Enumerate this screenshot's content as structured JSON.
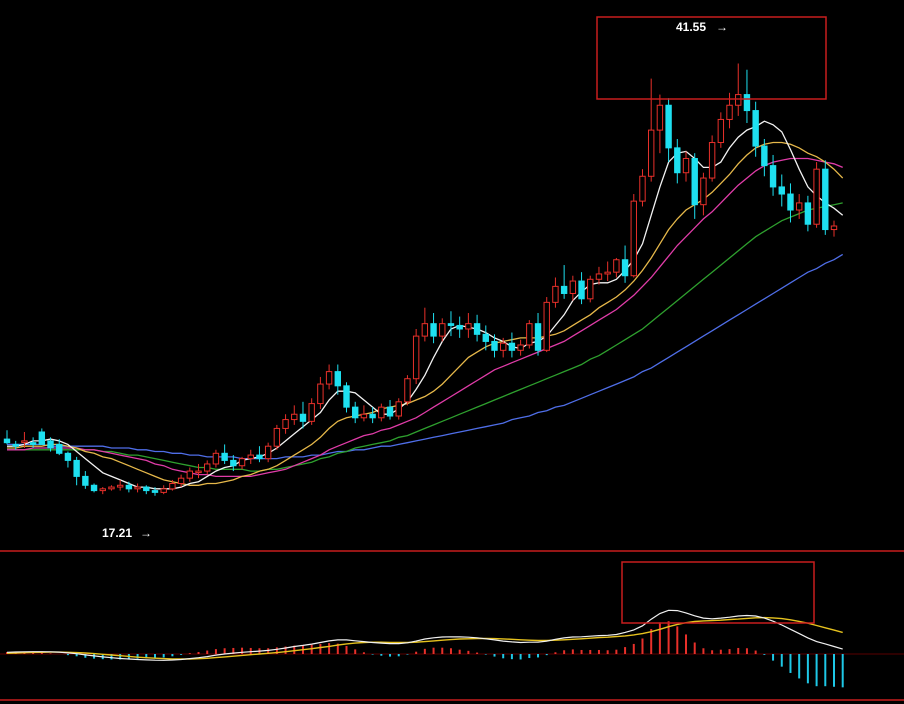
{
  "chart_data": {
    "type": "candlestick",
    "annotations": {
      "high_label": "41.55",
      "low_label": "17.21"
    },
    "price_axis": {
      "min": 15,
      "max": 44
    },
    "colors": {
      "up": "#e8302a",
      "down": "#1ee0f0",
      "ma1": "#f2f2f2",
      "ma2": "#e6b84a",
      "ma3": "#e03ca8",
      "ma4": "#2ea02e",
      "ma5": "#4f6ee8",
      "macd_dif": "#f0f0f0",
      "macd_dea": "#e6c21e",
      "hist_pos": "#e8302a",
      "hist_neg": "#1ec8e6",
      "frame": "#c81e1e"
    },
    "candles": [
      [
        20.4,
        20.9,
        20.2,
        20.1
      ],
      [
        20.1,
        20.3,
        20.0,
        19.8
      ],
      [
        20.3,
        20.8,
        20.3,
        19.9
      ],
      [
        20.2,
        20.5,
        20.1,
        19.9
      ],
      [
        20.8,
        21.0,
        20.1,
        20.1
      ],
      [
        20.3,
        20.5,
        19.9,
        19.7
      ],
      [
        20.1,
        20.4,
        19.6,
        19.5
      ],
      [
        19.6,
        19.7,
        19.2,
        18.8
      ],
      [
        19.2,
        19.4,
        18.3,
        17.8
      ],
      [
        18.3,
        18.6,
        17.8,
        17.6
      ],
      [
        17.8,
        17.9,
        17.5,
        17.4
      ],
      [
        17.5,
        17.7,
        17.6,
        17.3
      ],
      [
        17.6,
        17.8,
        17.7,
        17.5
      ],
      [
        17.7,
        18.1,
        17.8,
        17.5
      ],
      [
        17.8,
        18.0,
        17.6,
        17.4
      ],
      [
        17.6,
        17.9,
        17.7,
        17.4
      ],
      [
        17.7,
        17.8,
        17.5,
        17.3
      ],
      [
        17.5,
        17.7,
        17.4,
        17.21
      ],
      [
        17.4,
        17.8,
        17.6,
        17.3
      ],
      [
        17.6,
        18.1,
        17.9,
        17.5
      ],
      [
        17.9,
        18.4,
        18.2,
        17.7
      ],
      [
        18.2,
        18.8,
        18.6,
        18.0
      ],
      [
        18.6,
        19.0,
        18.6,
        18.2
      ],
      [
        18.6,
        19.2,
        19.0,
        18.4
      ],
      [
        19.0,
        19.8,
        19.6,
        18.8
      ],
      [
        19.6,
        20.1,
        19.2,
        19.0
      ],
      [
        19.2,
        19.5,
        18.9,
        18.6
      ],
      [
        18.9,
        19.4,
        19.3,
        18.7
      ],
      [
        19.3,
        19.8,
        19.5,
        19.0
      ],
      [
        19.5,
        20.0,
        19.3,
        19.1
      ],
      [
        19.3,
        20.2,
        20.0,
        19.1
      ],
      [
        20.0,
        21.2,
        21.0,
        19.8
      ],
      [
        21.0,
        21.8,
        21.5,
        20.7
      ],
      [
        21.5,
        22.3,
        21.8,
        21.2
      ],
      [
        21.8,
        22.5,
        21.4,
        21.0
      ],
      [
        21.4,
        22.7,
        22.4,
        21.2
      ],
      [
        22.4,
        23.9,
        23.5,
        22.1
      ],
      [
        23.5,
        24.6,
        24.2,
        23.2
      ],
      [
        24.2,
        24.6,
        23.4,
        22.9
      ],
      [
        23.4,
        23.6,
        22.2,
        21.9
      ],
      [
        22.2,
        22.5,
        21.6,
        21.3
      ],
      [
        21.6,
        22.3,
        21.8,
        21.4
      ],
      [
        21.8,
        22.2,
        21.6,
        21.3
      ],
      [
        21.6,
        22.4,
        22.2,
        21.4
      ],
      [
        22.2,
        22.6,
        21.7,
        21.5
      ],
      [
        21.7,
        22.7,
        22.5,
        21.5
      ],
      [
        22.5,
        24.0,
        23.8,
        22.3
      ],
      [
        23.8,
        26.6,
        26.2,
        23.5
      ],
      [
        26.2,
        27.8,
        26.9,
        25.9
      ],
      [
        26.9,
        27.5,
        26.2,
        25.8
      ],
      [
        26.2,
        27.2,
        26.9,
        25.9
      ],
      [
        26.9,
        27.6,
        26.8,
        26.2
      ],
      [
        26.8,
        27.3,
        26.6,
        26.1
      ],
      [
        26.6,
        27.5,
        26.9,
        26.1
      ],
      [
        26.9,
        27.4,
        26.3,
        25.9
      ],
      [
        26.3,
        26.8,
        25.9,
        25.4
      ],
      [
        25.9,
        26.3,
        25.4,
        25.0
      ],
      [
        25.4,
        26.1,
        25.8,
        25.0
      ],
      [
        25.8,
        26.4,
        25.4,
        25.0
      ],
      [
        25.4,
        26.0,
        25.7,
        25.1
      ],
      [
        25.7,
        27.1,
        26.9,
        25.5
      ],
      [
        26.9,
        27.5,
        25.4,
        25.1
      ],
      [
        25.4,
        28.4,
        28.1,
        25.3
      ],
      [
        28.1,
        29.5,
        29.0,
        27.8
      ],
      [
        29.0,
        30.2,
        28.6,
        28.3
      ],
      [
        28.6,
        29.6,
        29.3,
        28.2
      ],
      [
        29.3,
        29.8,
        28.3,
        28.0
      ],
      [
        28.3,
        29.6,
        29.4,
        28.1
      ],
      [
        29.4,
        30.1,
        29.7,
        29.1
      ],
      [
        29.7,
        30.4,
        29.8,
        29.3
      ],
      [
        29.8,
        30.6,
        30.5,
        29.5
      ],
      [
        30.5,
        31.3,
        29.6,
        29.2
      ],
      [
        29.6,
        34.2,
        33.8,
        29.5
      ],
      [
        33.8,
        35.6,
        35.2,
        33.5
      ],
      [
        35.2,
        40.7,
        37.8,
        34.9
      ],
      [
        37.8,
        39.8,
        39.2,
        36.5
      ],
      [
        39.2,
        39.6,
        36.8,
        36.0
      ],
      [
        36.8,
        37.3,
        35.4,
        34.8
      ],
      [
        35.4,
        36.6,
        36.2,
        34.9
      ],
      [
        36.2,
        36.5,
        33.6,
        32.8
      ],
      [
        33.6,
        35.4,
        35.1,
        33.0
      ],
      [
        35.1,
        37.5,
        37.1,
        34.9
      ],
      [
        37.1,
        38.8,
        38.4,
        36.8
      ],
      [
        38.4,
        39.9,
        39.2,
        37.9
      ],
      [
        39.2,
        41.55,
        39.8,
        38.6
      ],
      [
        39.8,
        41.2,
        38.9,
        38.2
      ],
      [
        38.9,
        39.4,
        36.9,
        36.3
      ],
      [
        36.9,
        37.3,
        35.8,
        35.2
      ],
      [
        35.8,
        36.4,
        34.6,
        34.1
      ],
      [
        34.6,
        35.3,
        34.2,
        33.5
      ],
      [
        34.2,
        34.8,
        33.3,
        32.6
      ],
      [
        33.3,
        34.2,
        33.7,
        32.8
      ],
      [
        33.7,
        34.1,
        32.5,
        32.1
      ],
      [
        32.5,
        36.0,
        35.6,
        32.3
      ],
      [
        35.6,
        36.1,
        32.2,
        31.9
      ],
      [
        32.2,
        32.7,
        32.4,
        31.8
      ]
    ],
    "ma_lines": [
      {
        "name": "",
        "values": [
          20.0,
          20.0,
          20.1,
          20.3,
          20.3,
          20.4,
          20.3,
          20.1,
          19.7,
          19.3,
          18.9,
          18.5,
          18.3,
          18.1,
          17.9,
          17.7,
          17.7,
          17.6,
          17.6,
          17.6,
          17.7,
          17.9,
          18.0,
          18.3,
          18.6,
          18.8,
          18.9,
          19.2,
          19.3,
          19.4,
          19.6,
          19.9,
          20.3,
          20.7,
          21.1,
          21.5,
          21.9,
          22.6,
          23.1,
          23.1,
          23.0,
          22.6,
          22.2,
          21.8,
          21.8,
          22.1,
          22.5,
          23.2,
          24.0,
          25.0,
          25.9,
          26.6,
          26.8,
          26.7,
          26.6,
          26.4,
          26.1,
          25.9,
          25.6,
          25.5,
          25.8,
          25.9,
          26.2,
          26.8,
          27.4,
          28.2,
          28.7,
          29.1,
          29.2,
          29.2,
          29.4,
          29.9,
          30.5,
          31.4,
          33.0,
          34.6,
          36.0,
          36.5,
          36.6,
          36.2,
          35.7,
          35.7,
          36.0,
          36.8,
          37.4,
          37.8,
          38.0,
          38.3,
          38.1,
          37.7,
          36.7,
          35.6,
          34.6,
          34.1,
          33.7,
          33.4,
          33.0
        ]
      },
      {
        "name": "",
        "values": [
          19.9,
          19.9,
          20.0,
          20.0,
          20.0,
          20.1,
          20.1,
          20.0,
          19.9,
          19.7,
          19.6,
          19.4,
          19.3,
          19.1,
          18.9,
          18.7,
          18.5,
          18.3,
          18.1,
          18.0,
          17.9,
          17.8,
          17.8,
          17.9,
          17.9,
          18.0,
          18.1,
          18.3,
          18.4,
          18.6,
          18.7,
          18.9,
          19.2,
          19.5,
          19.8,
          20.1,
          20.5,
          21.0,
          21.4,
          21.6,
          21.7,
          21.8,
          21.9,
          22.1,
          22.2,
          22.3,
          22.4,
          22.6,
          22.8,
          23.1,
          23.5,
          24.0,
          24.5,
          25.0,
          25.3,
          25.6,
          25.8,
          25.9,
          26.0,
          26.1,
          26.1,
          26.1,
          26.2,
          26.3,
          26.5,
          26.8,
          27.1,
          27.4,
          27.8,
          28.1,
          28.4,
          28.8,
          29.3,
          29.9,
          30.6,
          31.4,
          32.2,
          32.8,
          33.3,
          33.6,
          33.9,
          34.3,
          34.8,
          35.3,
          35.9,
          36.4,
          36.8,
          37.0,
          37.1,
          37.1,
          37.0,
          36.8,
          36.5,
          36.3,
          36.0,
          35.6,
          35.1
        ]
      },
      {
        "name": "",
        "values": [
          19.8,
          19.8,
          19.8,
          19.9,
          19.9,
          19.9,
          19.9,
          19.9,
          19.9,
          19.8,
          19.8,
          19.7,
          19.6,
          19.5,
          19.4,
          19.3,
          19.2,
          19.0,
          18.9,
          18.7,
          18.6,
          18.5,
          18.4,
          18.4,
          18.3,
          18.3,
          18.3,
          18.3,
          18.3,
          18.4,
          18.5,
          18.6,
          18.7,
          18.9,
          19.1,
          19.3,
          19.5,
          19.8,
          20.0,
          20.2,
          20.4,
          20.6,
          20.7,
          20.9,
          21.0,
          21.2,
          21.4,
          21.6,
          21.9,
          22.2,
          22.5,
          22.8,
          23.1,
          23.4,
          23.7,
          24.0,
          24.3,
          24.5,
          24.7,
          24.9,
          25.1,
          25.3,
          25.5,
          25.7,
          25.9,
          26.2,
          26.5,
          26.8,
          27.1,
          27.4,
          27.7,
          28.1,
          28.5,
          29.0,
          29.5,
          30.1,
          30.7,
          31.3,
          31.8,
          32.3,
          32.8,
          33.2,
          33.7,
          34.2,
          34.7,
          35.1,
          35.5,
          35.8,
          36.0,
          36.1,
          36.2,
          36.2,
          36.2,
          36.1,
          36.0,
          35.9,
          35.7
        ]
      },
      {
        "name": "",
        "values": [
          19.8,
          19.8,
          19.8,
          19.8,
          19.8,
          19.8,
          19.8,
          19.8,
          19.8,
          19.8,
          19.8,
          19.7,
          19.7,
          19.6,
          19.5,
          19.5,
          19.4,
          19.3,
          19.2,
          19.1,
          19.0,
          18.9,
          18.8,
          18.8,
          18.7,
          18.7,
          18.7,
          18.7,
          18.6,
          18.6,
          18.7,
          18.7,
          18.8,
          18.9,
          19.0,
          19.1,
          19.3,
          19.4,
          19.6,
          19.7,
          19.9,
          20.0,
          20.1,
          20.2,
          20.3,
          20.5,
          20.6,
          20.8,
          21.0,
          21.2,
          21.4,
          21.6,
          21.8,
          22.0,
          22.2,
          22.4,
          22.6,
          22.8,
          23.0,
          23.2,
          23.4,
          23.6,
          23.8,
          24.0,
          24.2,
          24.4,
          24.6,
          24.9,
          25.1,
          25.4,
          25.7,
          26.0,
          26.3,
          26.6,
          27.0,
          27.4,
          27.8,
          28.2,
          28.6,
          29.0,
          29.4,
          29.8,
          30.2,
          30.6,
          31.0,
          31.4,
          31.8,
          32.1,
          32.4,
          32.7,
          32.9,
          33.1,
          33.3,
          33.4,
          33.5,
          33.6,
          33.7
        ]
      },
      {
        "name": "",
        "values": [
          20.1,
          20.1,
          20.1,
          20.1,
          20.1,
          20.0,
          20.0,
          20.0,
          20.0,
          20.0,
          20.0,
          20.0,
          19.9,
          19.9,
          19.9,
          19.8,
          19.8,
          19.7,
          19.7,
          19.6,
          19.6,
          19.5,
          19.5,
          19.4,
          19.4,
          19.4,
          19.4,
          19.3,
          19.3,
          19.3,
          19.3,
          19.3,
          19.4,
          19.4,
          19.4,
          19.5,
          19.5,
          19.6,
          19.7,
          19.7,
          19.8,
          19.8,
          19.9,
          20.0,
          20.0,
          20.1,
          20.2,
          20.3,
          20.4,
          20.5,
          20.6,
          20.7,
          20.8,
          20.9,
          21.0,
          21.1,
          21.2,
          21.3,
          21.5,
          21.6,
          21.7,
          21.9,
          22.0,
          22.2,
          22.3,
          22.5,
          22.7,
          22.9,
          23.1,
          23.3,
          23.5,
          23.7,
          23.9,
          24.2,
          24.4,
          24.7,
          25.0,
          25.3,
          25.6,
          25.9,
          26.2,
          26.5,
          26.8,
          27.1,
          27.4,
          27.7,
          28.0,
          28.3,
          28.6,
          28.9,
          29.2,
          29.5,
          29.8,
          30.0,
          30.3,
          30.5,
          30.8
        ]
      }
    ],
    "macd": {
      "range": [
        -3.2,
        3.2
      ],
      "dif": [
        0.12,
        0.14,
        0.15,
        0.16,
        0.16,
        0.15,
        0.13,
        0.08,
        0.02,
        -0.06,
        -0.13,
        -0.2,
        -0.26,
        -0.31,
        -0.35,
        -0.38,
        -0.41,
        -0.43,
        -0.44,
        -0.42,
        -0.38,
        -0.32,
        -0.26,
        -0.18,
        -0.08,
        0.0,
        0.06,
        0.12,
        0.16,
        0.2,
        0.25,
        0.33,
        0.42,
        0.52,
        0.6,
        0.69,
        0.8,
        0.91,
        0.98,
        0.98,
        0.92,
        0.86,
        0.8,
        0.76,
        0.72,
        0.72,
        0.78,
        0.9,
        1.04,
        1.13,
        1.18,
        1.2,
        1.19,
        1.17,
        1.13,
        1.06,
        0.98,
        0.9,
        0.84,
        0.8,
        0.82,
        0.82,
        0.9,
        1.02,
        1.12,
        1.18,
        1.2,
        1.24,
        1.28,
        1.3,
        1.36,
        1.5,
        1.68,
        1.96,
        2.42,
        2.82,
        3.04,
        3.02,
        2.86,
        2.66,
        2.5,
        2.45,
        2.5,
        2.56,
        2.64,
        2.68,
        2.64,
        2.5,
        2.28,
        2.02,
        1.72,
        1.42,
        1.12,
        0.86,
        0.7,
        0.52,
        0.34
      ],
      "dea": [
        0.05,
        0.07,
        0.09,
        0.11,
        0.12,
        0.13,
        0.13,
        0.12,
        0.1,
        0.07,
        0.03,
        -0.02,
        -0.07,
        -0.12,
        -0.17,
        -0.22,
        -0.26,
        -0.29,
        -0.32,
        -0.34,
        -0.35,
        -0.35,
        -0.33,
        -0.3,
        -0.25,
        -0.2,
        -0.15,
        -0.1,
        -0.05,
        0.0,
        0.05,
        0.1,
        0.16,
        0.23,
        0.3,
        0.37,
        0.45,
        0.53,
        0.62,
        0.7,
        0.76,
        0.8,
        0.82,
        0.82,
        0.81,
        0.8,
        0.8,
        0.82,
        0.86,
        0.91,
        0.96,
        1.0,
        1.04,
        1.06,
        1.08,
        1.08,
        1.07,
        1.05,
        1.02,
        0.99,
        0.96,
        0.94,
        0.94,
        0.96,
        0.99,
        1.02,
        1.06,
        1.1,
        1.14,
        1.17,
        1.21,
        1.26,
        1.33,
        1.42,
        1.55,
        1.72,
        1.9,
        2.06,
        2.18,
        2.26,
        2.3,
        2.32,
        2.35,
        2.39,
        2.43,
        2.48,
        2.52,
        2.53,
        2.51,
        2.46,
        2.38,
        2.27,
        2.14,
        1.98,
        1.82,
        1.66,
        1.5
      ],
      "hist": [
        0.14,
        0.14,
        0.12,
        0.1,
        0.08,
        0.04,
        0.0,
        -0.08,
        -0.16,
        -0.26,
        -0.32,
        -0.36,
        -0.38,
        -0.38,
        -0.36,
        -0.32,
        -0.3,
        -0.28,
        -0.24,
        -0.16,
        -0.06,
        0.06,
        0.14,
        0.24,
        0.34,
        0.4,
        0.42,
        0.44,
        0.42,
        0.4,
        0.4,
        0.46,
        0.52,
        0.58,
        0.6,
        0.64,
        0.7,
        0.76,
        0.72,
        0.56,
        0.32,
        0.12,
        -0.04,
        -0.12,
        -0.18,
        -0.16,
        -0.04,
        0.16,
        0.36,
        0.44,
        0.44,
        0.4,
        0.3,
        0.22,
        0.1,
        -0.04,
        -0.18,
        -0.3,
        -0.36,
        -0.38,
        -0.28,
        -0.24,
        -0.08,
        0.12,
        0.26,
        0.32,
        0.28,
        0.28,
        0.28,
        0.26,
        0.3,
        0.48,
        0.7,
        1.08,
        1.74,
        2.2,
        2.28,
        1.92,
        1.36,
        0.8,
        0.4,
        0.26,
        0.3,
        0.34,
        0.42,
        0.4,
        0.24,
        -0.06,
        -0.46,
        -0.88,
        -1.32,
        -1.7,
        -2.04,
        -2.24,
        -2.24,
        -2.28,
        -2.32
      ]
    }
  }
}
